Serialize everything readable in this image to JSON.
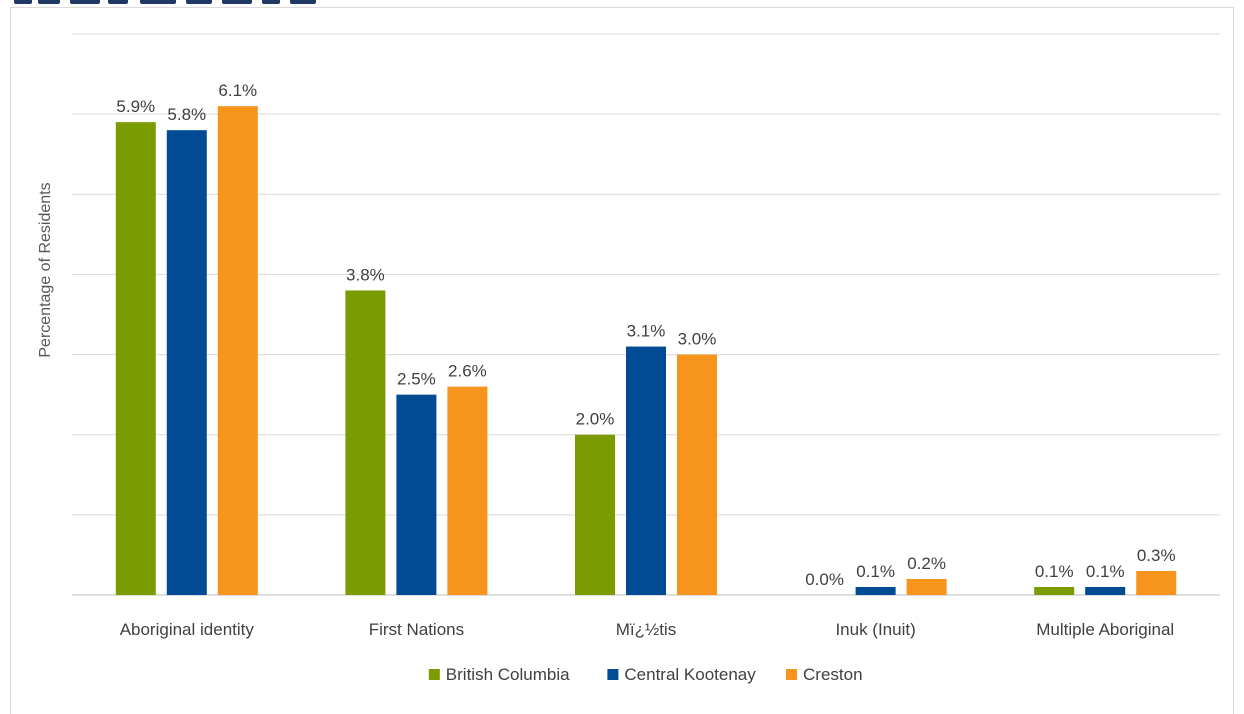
{
  "chart_data": {
    "type": "bar",
    "title": "",
    "xlabel": "",
    "ylabel": "Percentage of Residents",
    "ylim": [
      0,
      7
    ],
    "gridlines": [
      0,
      1,
      2,
      3,
      4,
      5,
      6,
      7
    ],
    "grid": true,
    "legend_position": "bottom",
    "categories": [
      "Aboriginal identity",
      "First Nations",
      "Mï¿½tis",
      "Inuk (Inuit)",
      "Multiple Aboriginal"
    ],
    "series": [
      {
        "name": "British Columbia",
        "color": "#7a9c01",
        "values": [
          5.9,
          3.8,
          2.0,
          0.0,
          0.1
        ],
        "labels": [
          "5.9%",
          "3.8%",
          "2.0%",
          "0.0%",
          "0.1%"
        ]
      },
      {
        "name": "Central Kootenay",
        "color": "#004b93",
        "values": [
          5.8,
          2.5,
          3.1,
          0.1,
          0.1
        ],
        "labels": [
          "5.8%",
          "2.5%",
          "3.1%",
          "0.1%",
          "0.1%"
        ]
      },
      {
        "name": "Creston",
        "color": "#f7941d",
        "values": [
          6.1,
          2.6,
          3.0,
          0.2,
          0.3
        ],
        "labels": [
          "6.1%",
          "2.6%",
          "3.0%",
          "0.2%",
          "0.3%"
        ]
      }
    ]
  }
}
